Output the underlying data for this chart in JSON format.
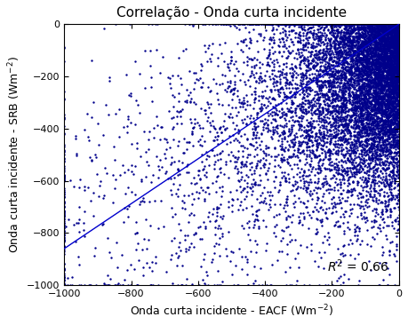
{
  "title": "Correlação - Onda curta incidente",
  "xlabel": "Onda curta incidente - EACF (Wm$^{-2}$)",
  "ylabel": "Onda curta incidente - SRB (Wm$^{-2}$)",
  "xlim": [
    -1000,
    0
  ],
  "ylim": [
    -1000,
    0
  ],
  "xticks": [
    -1000,
    -800,
    -600,
    -400,
    -200,
    0
  ],
  "yticks": [
    -1000,
    -800,
    -600,
    -400,
    -200,
    0
  ],
  "scatter_color": "#00008B",
  "line_color": "#0000CD",
  "r2_value": "0.66",
  "n_points": 15000,
  "seed": 42,
  "marker_size": 3,
  "alpha": 1.0,
  "background_color": "#ffffff",
  "title_fontsize": 11,
  "label_fontsize": 9,
  "tick_fontsize": 8,
  "line_x0": -1000,
  "line_y0": -860,
  "line_x1": 0,
  "line_y1": 0
}
